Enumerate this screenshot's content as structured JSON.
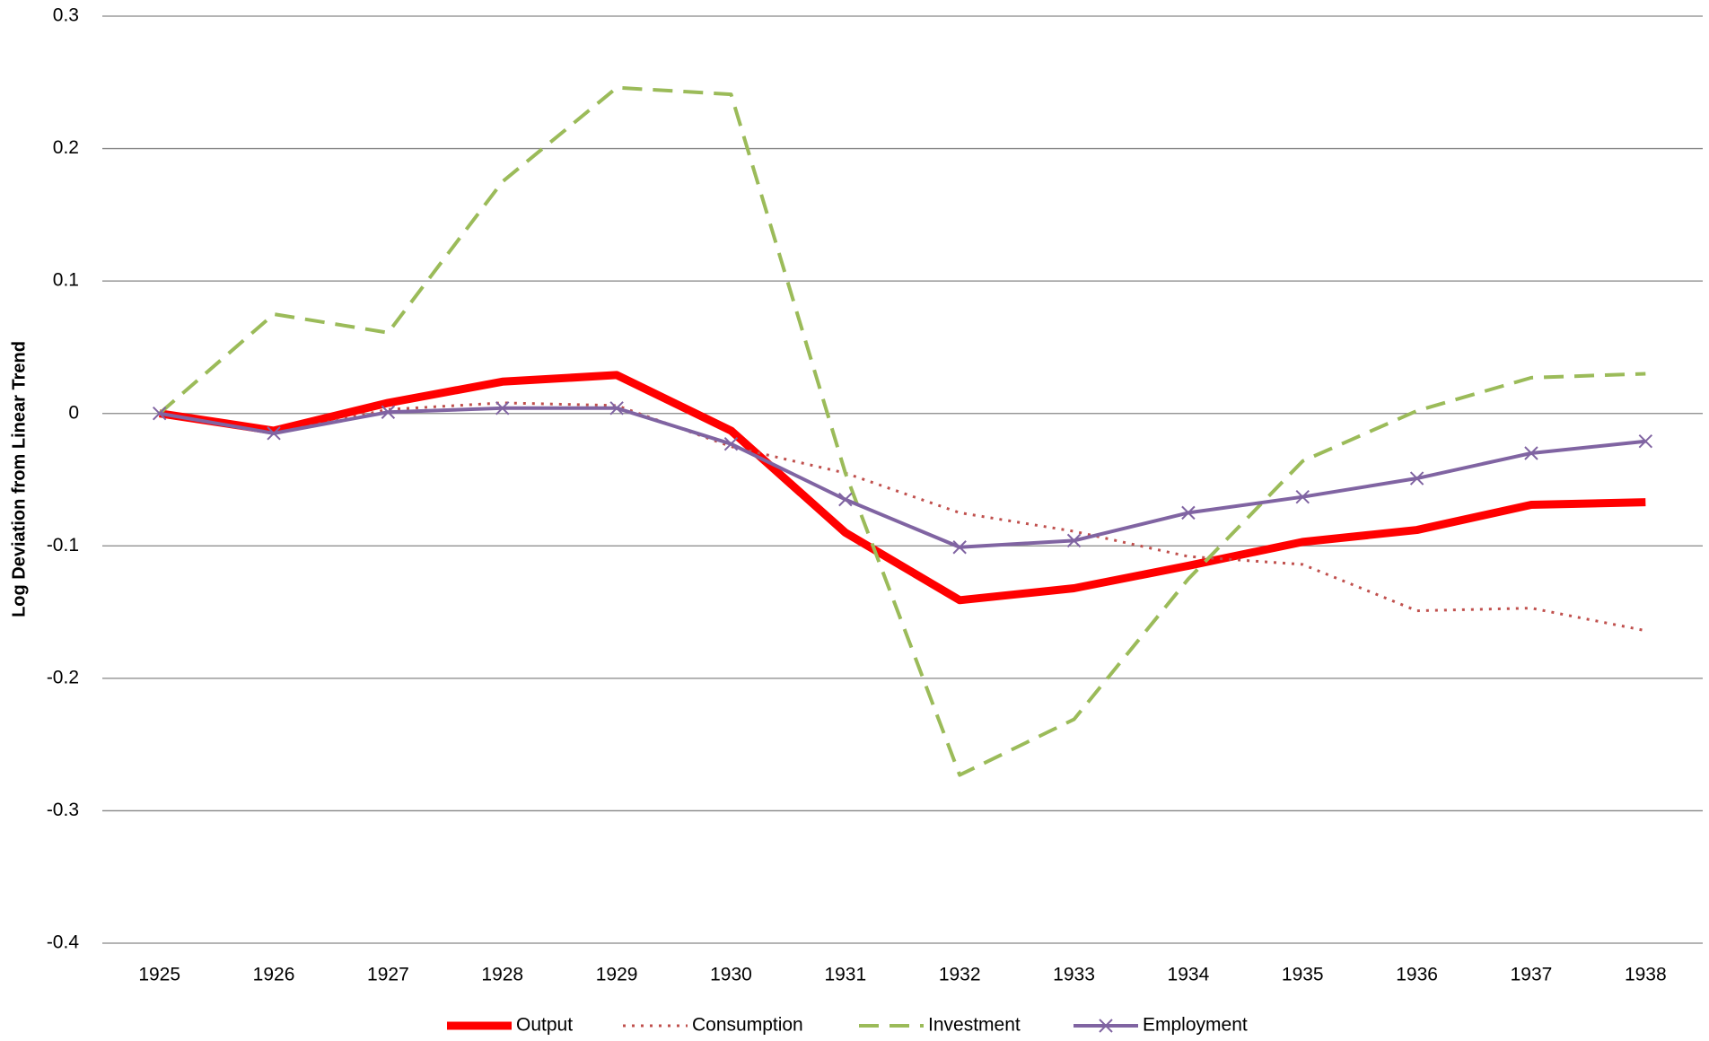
{
  "chart_data": {
    "type": "line",
    "y_label": "Log Deviation from Linear Trend",
    "categories": [
      "1925",
      "1926",
      "1927",
      "1928",
      "1929",
      "1930",
      "1931",
      "1932",
      "1933",
      "1934",
      "1935",
      "1936",
      "1937",
      "1938"
    ],
    "series": [
      {
        "name": "Output",
        "color": "#ff0000",
        "width": 9,
        "dash": "solid",
        "marker": "none",
        "values": [
          0,
          -0.013,
          0.008,
          0.024,
          0.029,
          -0.013,
          -0.09,
          -0.141,
          -0.132,
          -0.115,
          -0.097,
          -0.088,
          -0.069,
          -0.067
        ]
      },
      {
        "name": "Consumption",
        "color": "#c0504d",
        "width": 3,
        "dash": "dotted",
        "marker": "none",
        "values": [
          0,
          -0.015,
          0.003,
          0.008,
          0.006,
          -0.025,
          -0.045,
          -0.075,
          -0.089,
          -0.108,
          -0.114,
          -0.149,
          -0.147,
          -0.164
        ]
      },
      {
        "name": "Investment",
        "color": "#9bbb59",
        "width": 4,
        "dash": "dashed",
        "marker": "none",
        "values": [
          0,
          0.075,
          0.061,
          0.175,
          0.246,
          0.241,
          -0.045,
          -0.273,
          -0.231,
          -0.125,
          -0.036,
          0.002,
          0.027,
          0.03
        ]
      },
      {
        "name": "Employment",
        "color": "#8064a2",
        "width": 4,
        "dash": "solid",
        "marker": "x",
        "values": [
          0,
          -0.015,
          0.001,
          0.004,
          0.004,
          -0.023,
          -0.065,
          -0.101,
          -0.096,
          -0.075,
          -0.063,
          -0.049,
          -0.03,
          -0.021
        ]
      }
    ],
    "ylim": [
      -0.4,
      0.3
    ],
    "yticks": [
      0.3,
      0.2,
      0.1,
      0,
      -0.1,
      -0.2,
      -0.3,
      -0.4
    ],
    "grid": true,
    "legend": "bottom"
  }
}
